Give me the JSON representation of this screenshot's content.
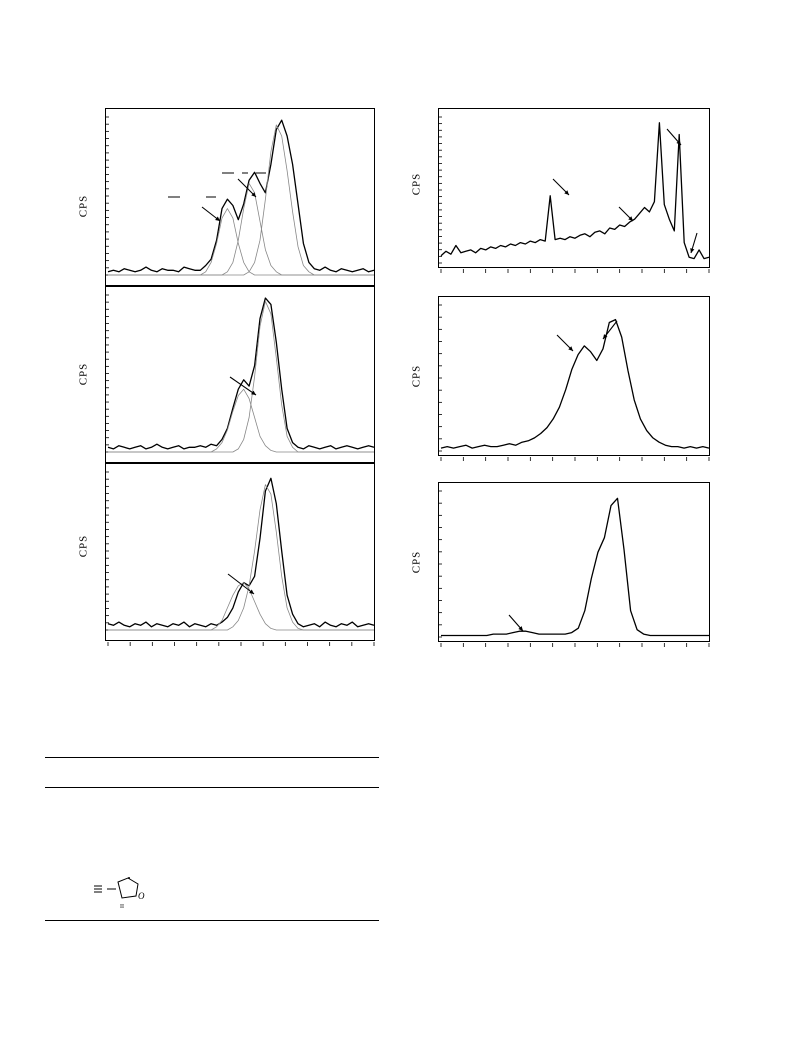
{
  "figure": {
    "y_axis_label": "CPS",
    "line_color": "#000000",
    "fit_line_color": "#888888"
  },
  "chart_data": [
    {
      "type": "line",
      "panel": "left-top",
      "series": [
        {
          "values": [
            2,
            3,
            2,
            4,
            3,
            2,
            3,
            5,
            3,
            2,
            4,
            3,
            3,
            2,
            5,
            4,
            3,
            3,
            6,
            10,
            22,
            42,
            48,
            44,
            35,
            45,
            60,
            65,
            58,
            52,
            70,
            92,
            98,
            88,
            70,
            45,
            20,
            8,
            4,
            3,
            5,
            3,
            2,
            4,
            3,
            2,
            3,
            4,
            2,
            3
          ]
        },
        {
          "values": [
            0,
            0,
            0,
            0,
            0,
            0,
            0,
            0,
            0,
            0,
            0,
            0,
            0,
            0,
            0,
            0,
            0,
            0,
            2,
            8,
            20,
            36,
            42,
            36,
            20,
            8,
            2,
            0,
            0,
            0,
            0,
            0,
            0,
            0,
            0,
            0,
            0,
            0,
            0,
            0,
            0,
            0,
            0,
            0,
            0,
            0,
            0,
            0,
            0,
            0
          ]
        },
        {
          "values": [
            0,
            0,
            0,
            0,
            0,
            0,
            0,
            0,
            0,
            0,
            0,
            0,
            0,
            0,
            0,
            0,
            0,
            0,
            0,
            0,
            0,
            0,
            2,
            8,
            22,
            42,
            58,
            52,
            34,
            16,
            6,
            2,
            0,
            0,
            0,
            0,
            0,
            0,
            0,
            0,
            0,
            0,
            0,
            0,
            0,
            0,
            0,
            0,
            0,
            0
          ]
        },
        {
          "values": [
            0,
            0,
            0,
            0,
            0,
            0,
            0,
            0,
            0,
            0,
            0,
            0,
            0,
            0,
            0,
            0,
            0,
            0,
            0,
            0,
            0,
            0,
            0,
            0,
            0,
            0,
            2,
            8,
            22,
            48,
            78,
            95,
            88,
            66,
            40,
            18,
            6,
            2,
            0,
            0,
            0,
            0,
            0,
            0,
            0,
            0,
            0,
            0,
            0,
            0
          ]
        }
      ]
    },
    {
      "type": "line",
      "panel": "left-middle",
      "series": [
        {
          "values": [
            3,
            2,
            4,
            3,
            2,
            3,
            4,
            2,
            3,
            5,
            3,
            2,
            3,
            4,
            2,
            3,
            3,
            4,
            3,
            5,
            4,
            8,
            15,
            28,
            40,
            46,
            42,
            55,
            85,
            98,
            94,
            70,
            40,
            15,
            6,
            3,
            2,
            4,
            3,
            2,
            3,
            4,
            2,
            3,
            4,
            3,
            2,
            3,
            4,
            3
          ]
        },
        {
          "values": [
            0,
            0,
            0,
            0,
            0,
            0,
            0,
            0,
            0,
            0,
            0,
            0,
            0,
            0,
            0,
            0,
            0,
            0,
            0,
            0,
            2,
            6,
            14,
            26,
            36,
            40,
            34,
            22,
            10,
            4,
            1,
            0,
            0,
            0,
            0,
            0,
            0,
            0,
            0,
            0,
            0,
            0,
            0,
            0,
            0,
            0,
            0,
            0,
            0,
            0
          ]
        },
        {
          "values": [
            0,
            0,
            0,
            0,
            0,
            0,
            0,
            0,
            0,
            0,
            0,
            0,
            0,
            0,
            0,
            0,
            0,
            0,
            0,
            0,
            0,
            0,
            0,
            0,
            2,
            8,
            22,
            48,
            80,
            96,
            88,
            60,
            30,
            10,
            3,
            0,
            0,
            0,
            0,
            0,
            0,
            0,
            0,
            0,
            0,
            0,
            0,
            0,
            0,
            0
          ]
        }
      ]
    },
    {
      "type": "line",
      "panel": "left-bottom",
      "series": [
        {
          "values": [
            4,
            3,
            5,
            3,
            2,
            4,
            3,
            5,
            2,
            4,
            3,
            2,
            4,
            3,
            5,
            2,
            4,
            3,
            2,
            4,
            3,
            5,
            8,
            14,
            24,
            30,
            28,
            34,
            58,
            88,
            96,
            80,
            50,
            22,
            10,
            4,
            2,
            3,
            4,
            2,
            5,
            3,
            2,
            4,
            3,
            5,
            2,
            3,
            4,
            3
          ]
        },
        {
          "values": [
            0,
            0,
            0,
            0,
            0,
            0,
            0,
            0,
            0,
            0,
            0,
            0,
            0,
            0,
            0,
            0,
            0,
            0,
            0,
            0,
            2,
            6,
            14,
            22,
            28,
            30,
            26,
            18,
            10,
            4,
            1,
            0,
            0,
            0,
            0,
            0,
            0,
            0,
            0,
            0,
            0,
            0,
            0,
            0,
            0,
            0,
            0,
            0,
            0,
            0
          ]
        },
        {
          "values": [
            0,
            0,
            0,
            0,
            0,
            0,
            0,
            0,
            0,
            0,
            0,
            0,
            0,
            0,
            0,
            0,
            0,
            0,
            0,
            0,
            0,
            0,
            0,
            2,
            6,
            14,
            28,
            50,
            76,
            92,
            86,
            62,
            34,
            14,
            5,
            1,
            0,
            0,
            0,
            0,
            0,
            0,
            0,
            0,
            0,
            0,
            0,
            0,
            0,
            0
          ]
        }
      ]
    },
    {
      "type": "line",
      "panel": "right-top",
      "series": [
        {
          "values": [
            5,
            8,
            6,
            12,
            7,
            8,
            9,
            7,
            10,
            9,
            11,
            10,
            12,
            11,
            13,
            12,
            14,
            13,
            15,
            14,
            16,
            15,
            46,
            16,
            17,
            16,
            18,
            17,
            19,
            20,
            18,
            21,
            22,
            20,
            24,
            23,
            26,
            25,
            28,
            30,
            34,
            38,
            35,
            42,
            96,
            40,
            30,
            22,
            88,
            14,
            4,
            3,
            9,
            3,
            4
          ]
        }
      ]
    },
    {
      "type": "line",
      "panel": "right-middle",
      "series": [
        {
          "values": [
            2,
            3,
            2,
            3,
            4,
            2,
            3,
            4,
            3,
            3,
            4,
            5,
            4,
            6,
            7,
            9,
            12,
            16,
            22,
            30,
            42,
            56,
            66,
            72,
            68,
            62,
            70,
            88,
            90,
            78,
            55,
            35,
            22,
            14,
            9,
            6,
            4,
            3,
            3,
            2,
            3,
            2,
            3,
            2
          ]
        }
      ]
    },
    {
      "type": "line",
      "panel": "right-bottom",
      "series": [
        {
          "values": [
            1,
            1,
            1,
            1,
            1,
            1,
            1,
            1,
            2,
            2,
            2,
            3,
            4,
            4,
            3,
            2,
            2,
            2,
            2,
            2,
            3,
            6,
            18,
            40,
            58,
            68,
            90,
            95,
            60,
            18,
            5,
            2,
            1,
            1,
            1,
            1,
            1,
            1,
            1,
            1,
            1,
            1
          ]
        }
      ]
    }
  ]
}
